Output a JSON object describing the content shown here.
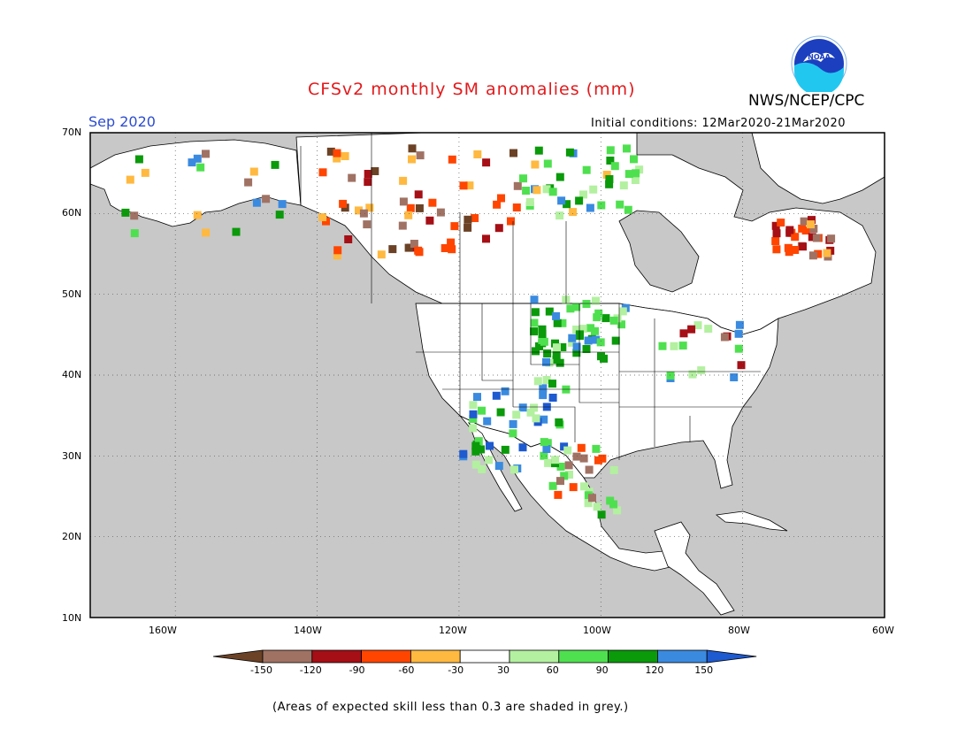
{
  "header": {
    "title": "CFSv2 monthly SM anomalies (mm)",
    "valid_month": "Sep 2020",
    "agency": "NWS/NCEP/CPC",
    "initial_conditions": "Initial conditions: 12Mar2020-21Mar2020",
    "logo_text": "NOAA"
  },
  "map": {
    "lon_range": [
      -172,
      -60
    ],
    "lat_range": [
      10,
      70
    ],
    "lat_labels": [
      "70N",
      "60N",
      "50N",
      "40N",
      "30N",
      "20N",
      "10N"
    ],
    "lon_labels": [
      "160W",
      "140W",
      "120W",
      "100W",
      "80W",
      "60W"
    ],
    "ocean_color": "#c8c8c8",
    "land_color": "#ffffff"
  },
  "colorbar": {
    "labels": [
      "-150",
      "-120",
      "-90",
      "-60",
      "-30",
      "30",
      "60",
      "90",
      "120",
      "150"
    ],
    "colors": [
      "#6b4226",
      "#a07264",
      "#a50f15",
      "#ff4500",
      "#ffb940",
      "#ffffff",
      "#b3f0a0",
      "#4fe04f",
      "#0a9a0a",
      "#3a8ae0",
      "#1e5ad0"
    ]
  },
  "footer": {
    "note": "(Areas of expected skill less than 0.3 are shaded in grey.)"
  }
}
